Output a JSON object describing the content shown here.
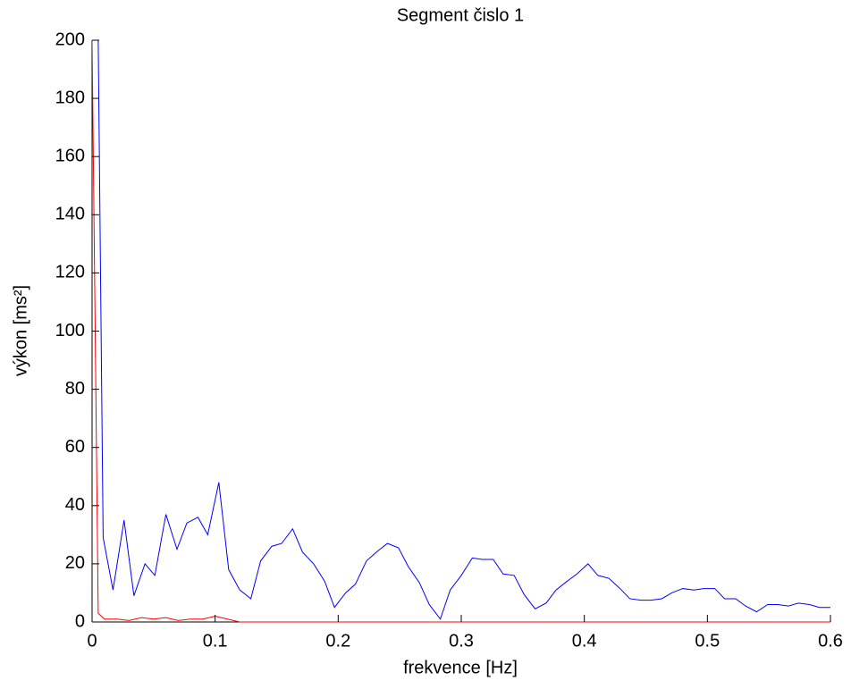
{
  "chart_data": {
    "type": "line",
    "title": "Segment čislo 1",
    "xlabel": "frekvence [Hz]",
    "ylabel": "výkon [ms²]",
    "xlim": [
      0,
      0.6
    ],
    "ylim": [
      0,
      200
    ],
    "xticks": [
      0,
      0.1,
      0.2,
      0.3,
      0.4,
      0.5,
      0.6
    ],
    "yticks": [
      0,
      20,
      40,
      60,
      80,
      100,
      120,
      140,
      160,
      180,
      200
    ],
    "grid": false,
    "series": [
      {
        "color": "#0000ff",
        "x": [
          0.005,
          0.009,
          0.017,
          0.026,
          0.034,
          0.043,
          0.051,
          0.06,
          0.069,
          0.077,
          0.086,
          0.094,
          0.103,
          0.111,
          0.12,
          0.129,
          0.137,
          0.146,
          0.154,
          0.163,
          0.171,
          0.18,
          0.189,
          0.197,
          0.206,
          0.214,
          0.223,
          0.231,
          0.24,
          0.249,
          0.257,
          0.266,
          0.274,
          0.283,
          0.291,
          0.3,
          0.309,
          0.317,
          0.326,
          0.334,
          0.343,
          0.351,
          0.36,
          0.369,
          0.377,
          0.386,
          0.394,
          0.403,
          0.411,
          0.42,
          0.429,
          0.437,
          0.446,
          0.454,
          0.463,
          0.471,
          0.48,
          0.489,
          0.497,
          0.506,
          0.514,
          0.523,
          0.531,
          0.54,
          0.549,
          0.557,
          0.566,
          0.574,
          0.583,
          0.591,
          0.6
        ],
        "values": [
          200,
          29,
          11,
          35,
          9,
          20,
          16,
          37,
          25,
          34,
          36,
          30,
          48,
          18,
          11,
          8,
          21,
          26,
          27,
          32,
          24,
          20,
          14,
          5,
          10,
          13,
          21,
          24,
          27,
          25.5,
          19,
          13.5,
          6,
          1,
          11,
          16,
          22,
          21.5,
          21.5,
          16.5,
          16,
          9.5,
          4.5,
          6.5,
          11,
          14,
          16.5,
          20,
          16,
          15,
          11.5,
          8,
          7.5,
          7.5,
          8,
          10,
          11.5,
          11,
          11.5,
          11.5,
          8,
          8,
          5.5,
          3.5,
          6,
          6,
          5.5,
          6.5,
          6,
          5,
          5
        ]
      },
      {
        "color": "#ff0000",
        "x": [
          0,
          0.005,
          0.01,
          0.02,
          0.03,
          0.04,
          0.05,
          0.06,
          0.07,
          0.08,
          0.09,
          0.1,
          0.11,
          0.12,
          0.6
        ],
        "values": [
          200,
          3,
          1,
          1,
          0.5,
          1.5,
          1,
          1.5,
          0.5,
          1,
          1,
          2,
          1,
          0,
          0
        ]
      }
    ]
  }
}
